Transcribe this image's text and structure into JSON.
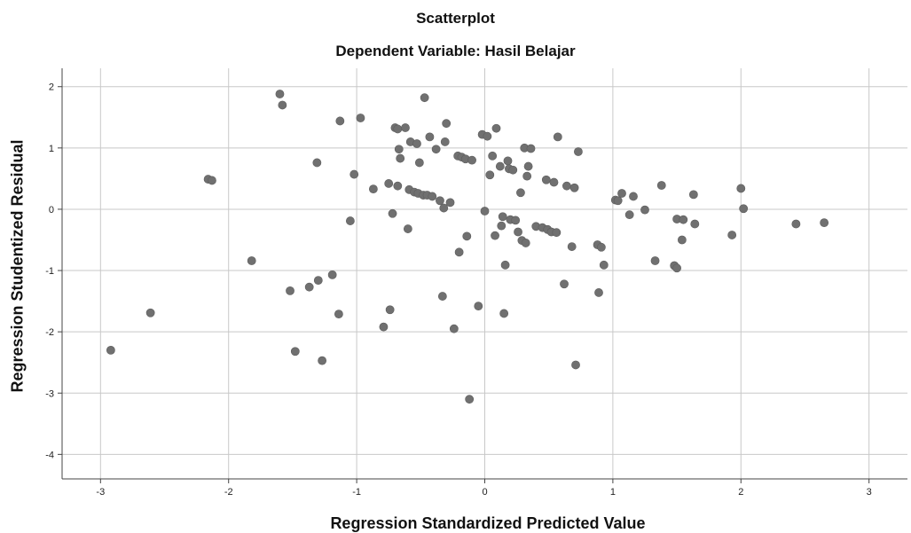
{
  "chart_data": {
    "type": "scatter",
    "title": "Scatterplot",
    "subtitle": "Dependent Variable: Hasil Belajar",
    "xlabel": "Regression Standardized Predicted Value",
    "ylabel": "Regression Studentized Residual",
    "xlim": [
      -3.3,
      3.3
    ],
    "ylim": [
      -4.4,
      2.3
    ],
    "xticks": [
      -3,
      -2,
      -1,
      0,
      1,
      2,
      3
    ],
    "xtick_labels": [
      "-3",
      "-2",
      "-1",
      "0",
      "1",
      "2",
      "3"
    ],
    "yticks": [
      -4,
      -3,
      -2,
      -1,
      0,
      1,
      2
    ],
    "ytick_labels": [
      "-4",
      "-3",
      "-2",
      "-1",
      "0",
      "1",
      "2"
    ],
    "grid": true,
    "colors": {
      "point": "#707070",
      "grid": "#c8c8c8",
      "axis": "#444444"
    },
    "points": [
      [
        -2.92,
        -2.3
      ],
      [
        -2.61,
        -1.69
      ],
      [
        -2.16,
        0.49
      ],
      [
        -2.13,
        0.47
      ],
      [
        -1.82,
        -0.84
      ],
      [
        -1.6,
        1.88
      ],
      [
        -1.58,
        1.7
      ],
      [
        -1.52,
        -1.33
      ],
      [
        -1.48,
        -2.32
      ],
      [
        -1.37,
        -1.27
      ],
      [
        -1.31,
        0.76
      ],
      [
        -1.3,
        -1.16
      ],
      [
        -1.27,
        -2.47
      ],
      [
        -1.19,
        -1.07
      ],
      [
        -1.14,
        -1.71
      ],
      [
        -1.13,
        1.44
      ],
      [
        -1.05,
        -0.19
      ],
      [
        -1.02,
        0.57
      ],
      [
        -0.97,
        1.49
      ],
      [
        -0.87,
        0.33
      ],
      [
        -0.79,
        -1.92
      ],
      [
        -0.75,
        0.42
      ],
      [
        -0.74,
        -1.64
      ],
      [
        -0.72,
        -0.07
      ],
      [
        -0.7,
        1.33
      ],
      [
        -0.68,
        1.31
      ],
      [
        -0.68,
        0.38
      ],
      [
        -0.67,
        0.98
      ],
      [
        -0.66,
        0.83
      ],
      [
        -0.62,
        1.33
      ],
      [
        -0.6,
        -0.32
      ],
      [
        -0.59,
        0.32
      ],
      [
        -0.58,
        1.1
      ],
      [
        -0.55,
        0.28
      ],
      [
        -0.53,
        1.07
      ],
      [
        -0.52,
        0.26
      ],
      [
        -0.51,
        0.76
      ],
      [
        -0.48,
        0.23
      ],
      [
        -0.47,
        1.82
      ],
      [
        -0.45,
        0.23
      ],
      [
        -0.43,
        1.18
      ],
      [
        -0.41,
        0.21
      ],
      [
        -0.38,
        0.98
      ],
      [
        -0.35,
        0.14
      ],
      [
        -0.33,
        -1.42
      ],
      [
        -0.32,
        0.02
      ],
      [
        -0.31,
        1.1
      ],
      [
        -0.3,
        1.4
      ],
      [
        -0.27,
        0.11
      ],
      [
        -0.24,
        -1.95
      ],
      [
        -0.21,
        0.87
      ],
      [
        -0.2,
        -0.7
      ],
      [
        -0.18,
        0.85
      ],
      [
        -0.15,
        0.82
      ],
      [
        -0.14,
        -0.44
      ],
      [
        -0.12,
        -3.1
      ],
      [
        -0.1,
        0.8
      ],
      [
        -0.05,
        -1.58
      ],
      [
        -0.02,
        1.22
      ],
      [
        0.0,
        -0.03
      ],
      [
        0.02,
        1.19
      ],
      [
        0.04,
        0.56
      ],
      [
        0.06,
        0.87
      ],
      [
        0.08,
        -0.43
      ],
      [
        0.09,
        1.32
      ],
      [
        0.12,
        0.7
      ],
      [
        0.13,
        -0.27
      ],
      [
        0.14,
        -0.12
      ],
      [
        0.15,
        -1.7
      ],
      [
        0.16,
        -0.91
      ],
      [
        0.18,
        0.79
      ],
      [
        0.19,
        0.66
      ],
      [
        0.2,
        -0.17
      ],
      [
        0.22,
        0.64
      ],
      [
        0.24,
        -0.18
      ],
      [
        0.26,
        -0.37
      ],
      [
        0.28,
        0.27
      ],
      [
        0.29,
        -0.51
      ],
      [
        0.31,
        1.0
      ],
      [
        0.32,
        -0.55
      ],
      [
        0.33,
        0.54
      ],
      [
        0.34,
        0.7
      ],
      [
        0.36,
        0.99
      ],
      [
        0.4,
        -0.28
      ],
      [
        0.45,
        -0.3
      ],
      [
        0.48,
        0.48
      ],
      [
        0.49,
        -0.33
      ],
      [
        0.52,
        -0.37
      ],
      [
        0.54,
        0.44
      ],
      [
        0.56,
        -0.38
      ],
      [
        0.57,
        1.18
      ],
      [
        0.62,
        -1.22
      ],
      [
        0.64,
        0.38
      ],
      [
        0.68,
        -0.61
      ],
      [
        0.7,
        0.35
      ],
      [
        0.71,
        -2.54
      ],
      [
        0.73,
        0.94
      ],
      [
        0.88,
        -0.58
      ],
      [
        0.89,
        -1.36
      ],
      [
        0.91,
        -0.62
      ],
      [
        0.93,
        -0.91
      ],
      [
        1.02,
        0.15
      ],
      [
        1.04,
        0.14
      ],
      [
        1.07,
        0.26
      ],
      [
        1.13,
        -0.09
      ],
      [
        1.16,
        0.21
      ],
      [
        1.25,
        -0.01
      ],
      [
        1.33,
        -0.84
      ],
      [
        1.38,
        0.39
      ],
      [
        1.48,
        -0.92
      ],
      [
        1.5,
        -0.96
      ],
      [
        1.5,
        -0.16
      ],
      [
        1.54,
        -0.5
      ],
      [
        1.55,
        -0.17
      ],
      [
        1.63,
        0.24
      ],
      [
        1.64,
        -0.24
      ],
      [
        1.93,
        -0.42
      ],
      [
        2.0,
        0.34
      ],
      [
        2.02,
        0.01
      ],
      [
        2.43,
        -0.24
      ],
      [
        2.65,
        -0.22
      ]
    ]
  }
}
